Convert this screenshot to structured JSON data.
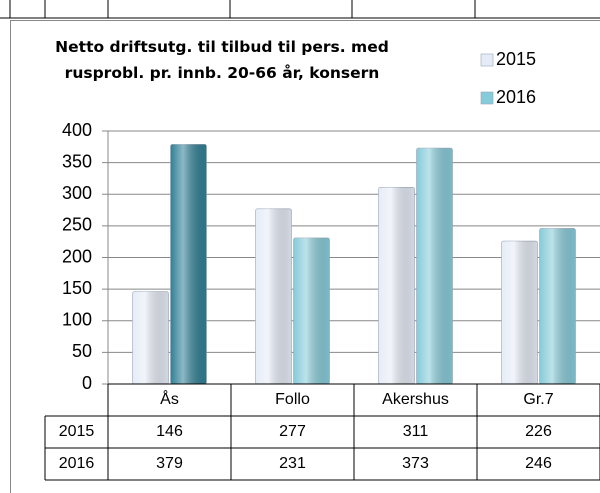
{
  "chart_data": {
    "type": "bar",
    "title": "Netto driftsutg. til tilbud til pers. med rusprobl. pr. innb. 20-66 år, konsern",
    "categories": [
      "Ås",
      "Follo",
      "Akershus",
      "Gr.7"
    ],
    "series": [
      {
        "name": "2015",
        "color": "#e6ecf7",
        "values": [
          146,
          277,
          311,
          226
        ]
      },
      {
        "name": "2016",
        "color": "#86cbd9",
        "point_colors": [
          "#2f8096",
          "#86cbd9",
          "#86cbd9",
          "#86cbd9"
        ],
        "values": [
          379,
          231,
          373,
          246
        ]
      }
    ],
    "ylim": [
      0,
      400
    ],
    "yticks": [
      0,
      50,
      100,
      150,
      200,
      250,
      300,
      350,
      400
    ],
    "grid": true,
    "legend": "top-right",
    "data_table": true
  }
}
